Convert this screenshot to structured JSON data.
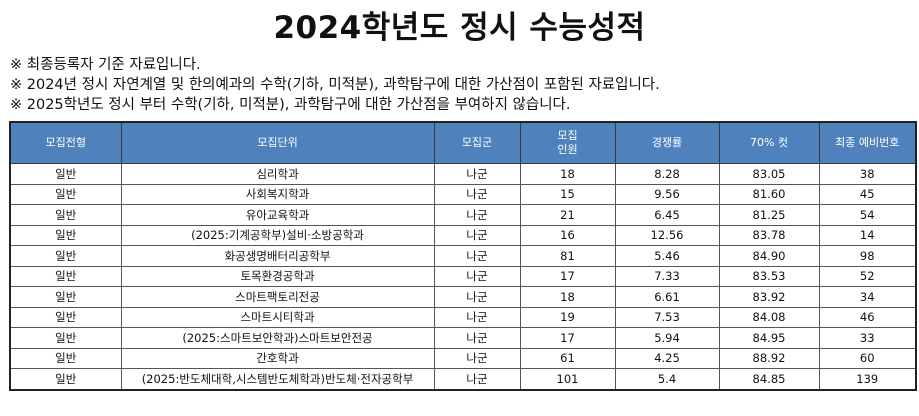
{
  "title": "2024학년도 정시 수능성적",
  "notes": [
    "※ 최종등록자 기준 자료입니다.",
    "※ 2024년 정시 자연계열 및 한의예과의 수학(기하, 미적분), 과학탐구에 대한 가산점이 포함된 자료입니다.",
    "※ 2025학년도 정시 부터 수학(기하, 미적분), 과학탐구에 대한 가산점을 부여하지 않습니다."
  ],
  "table": {
    "headers": [
      "모집전형",
      "모집단위",
      "모집군",
      "모집\n인원",
      "경쟁률",
      "70% 컷",
      "최종 예비번호"
    ],
    "rows": [
      [
        "일반",
        "심리학과",
        "나군",
        "18",
        "8.28",
        "83.05",
        "38"
      ],
      [
        "일반",
        "사회복지학과",
        "나군",
        "15",
        "9.56",
        "81.60",
        "45"
      ],
      [
        "일반",
        "유아교육학과",
        "나군",
        "21",
        "6.45",
        "81.25",
        "54"
      ],
      [
        "일반",
        "(2025:기계공학부)설비·소방공학과",
        "나군",
        "16",
        "12.56",
        "83.78",
        "14"
      ],
      [
        "일반",
        "화공생명배터리공학부",
        "나군",
        "81",
        "5.46",
        "84.90",
        "98"
      ],
      [
        "일반",
        "토목환경공학과",
        "나군",
        "17",
        "7.33",
        "83.53",
        "52"
      ],
      [
        "일반",
        "스마트팩토리전공",
        "나군",
        "18",
        "6.61",
        "83.92",
        "34"
      ],
      [
        "일반",
        "스마트시티학과",
        "나군",
        "19",
        "7.53",
        "84.08",
        "46"
      ],
      [
        "일반",
        "(2025:스마트보안학과)스마트보안전공",
        "나군",
        "17",
        "5.94",
        "84.95",
        "33"
      ],
      [
        "일반",
        "간호학과",
        "나군",
        "61",
        "4.25",
        "88.92",
        "60"
      ],
      [
        "일반",
        "(2025:반도체대학,시스템반도체학과)반도체·전자공학부",
        "나군",
        "101",
        "5.4",
        "84.85",
        "139"
      ]
    ]
  },
  "colors": {
    "header_background": "#4f81bd",
    "header_text": "#ffffff"
  }
}
